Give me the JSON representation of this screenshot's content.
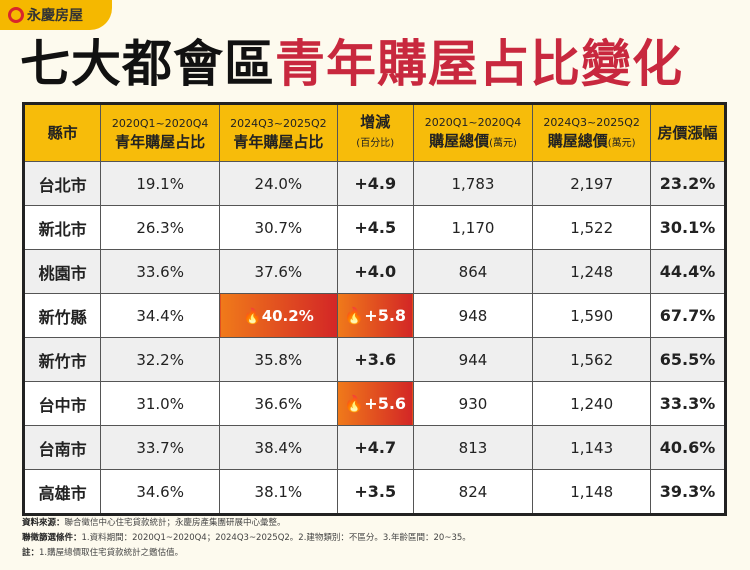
{
  "logo": {
    "text": "永慶房屋"
  },
  "title": {
    "black": "七大都會區",
    "red": "青年購屋占比變化"
  },
  "headers": [
    {
      "main": "縣市"
    },
    {
      "sub": "2020Q1~2020Q4",
      "main": "青年購屋占比"
    },
    {
      "sub": "2024Q3~2025Q2",
      "main": "青年購屋占比"
    },
    {
      "main": "增減",
      "sub": "(百分比)"
    },
    {
      "sub": "2020Q1~2020Q4",
      "main": "購屋總價",
      "unit": "(萬元)"
    },
    {
      "sub": "2024Q3~2025Q2",
      "main": "購屋總價",
      "unit": "(萬元)"
    },
    {
      "main": "房價漲幅"
    }
  ],
  "rows": [
    {
      "city": "台北市",
      "s2020": "19.1%",
      "s2024": "24.0%",
      "change": "+4.9",
      "p2020": "1,783",
      "p2024": "2,197",
      "rise": "23.2%"
    },
    {
      "city": "新北市",
      "s2020": "26.3%",
      "s2024": "30.7%",
      "change": "+4.5",
      "p2020": "1,170",
      "p2024": "1,522",
      "rise": "30.1%"
    },
    {
      "city": "桃園市",
      "s2020": "33.6%",
      "s2024": "37.6%",
      "change": "+4.0",
      "p2020": "864",
      "p2024": "1,248",
      "rise": "44.4%"
    },
    {
      "city": "新竹縣",
      "s2020": "34.4%",
      "s2024": "40.2%",
      "change": "+5.8",
      "p2020": "948",
      "p2024": "1,590",
      "rise": "67.7%",
      "hl_share": true,
      "hl_change": true
    },
    {
      "city": "新竹市",
      "s2020": "32.2%",
      "s2024": "35.8%",
      "change": "+3.6",
      "p2020": "944",
      "p2024": "1,562",
      "rise": "65.5%"
    },
    {
      "city": "台中市",
      "s2020": "31.0%",
      "s2024": "36.6%",
      "change": "+5.6",
      "p2020": "930",
      "p2024": "1,240",
      "rise": "33.3%",
      "hl_change": true
    },
    {
      "city": "台南市",
      "s2020": "33.7%",
      "s2024": "38.4%",
      "change": "+4.7",
      "p2020": "813",
      "p2024": "1,143",
      "rise": "40.6%"
    },
    {
      "city": "高雄市",
      "s2020": "34.6%",
      "s2024": "38.1%",
      "change": "+3.5",
      "p2020": "824",
      "p2024": "1,148",
      "rise": "39.3%"
    }
  ],
  "notes": [
    {
      "label": "資料來源：",
      "text": "聯合徵信中心住宅貸款統計；永慶房產集團研展中心彙整。"
    },
    {
      "label": "聯徵篩選條件：",
      "text": "1.資料期間：2020Q1~2020Q4；2024Q3~2025Q2。2.建物類別：不區分。3.年齡區間：20~35。"
    },
    {
      "label": "註：",
      "text": "1.購屋總價取住宅貸款統計之鑑估值。"
    }
  ],
  "colors": {
    "header": "#f7bc0a",
    "title_red": "#c8283e",
    "highlight": "#e04a20"
  },
  "icons": {
    "highlight": "fire-icon"
  }
}
